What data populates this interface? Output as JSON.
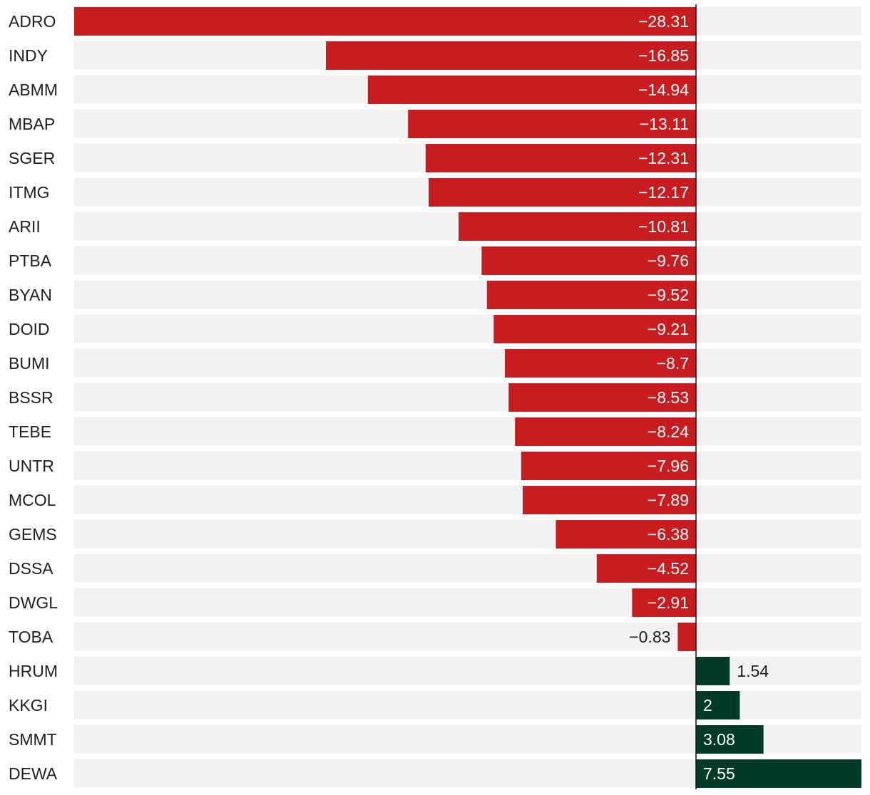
{
  "chart_data": {
    "type": "bar",
    "orientation": "horizontal",
    "categories": [
      "ADRO",
      "INDY",
      "ABMM",
      "MBAP",
      "SGER",
      "ITMG",
      "ARII",
      "PTBA",
      "BYAN",
      "DOID",
      "BUMI",
      "BSSR",
      "TEBE",
      "UNTR",
      "MCOL",
      "GEMS",
      "DSSA",
      "DWGL",
      "TOBA",
      "HRUM",
      "KKGI",
      "SMMT",
      "DEWA"
    ],
    "values": [
      -28.31,
      -16.85,
      -14.94,
      -13.11,
      -12.31,
      -12.17,
      -10.81,
      -9.76,
      -9.52,
      -9.21,
      -8.7,
      -8.53,
      -8.24,
      -7.96,
      -7.89,
      -6.38,
      -4.52,
      -2.91,
      -0.83,
      1.54,
      2,
      3.08,
      7.55
    ],
    "value_labels": [
      "−28.31",
      "−16.85",
      "−14.94",
      "−13.11",
      "−12.31",
      "−12.17",
      "−10.81",
      "−9.76",
      "−9.52",
      "−9.21",
      "−8.7",
      "−8.53",
      "−8.24",
      "−7.96",
      "−7.89",
      "−6.38",
      "−4.52",
      "−2.91",
      "−0.83",
      "1.54",
      "2",
      "3.08",
      "7.55"
    ],
    "xlim": [
      -28.31,
      7.55
    ],
    "title": "",
    "xlabel": "",
    "ylabel": "",
    "grid": false,
    "legend": "none",
    "colors": {
      "negative": "#c81c1e",
      "positive": "#003b25",
      "row_background": "#f2f2f2",
      "zero_line": "#111111",
      "label_on_bar": "#ffffff",
      "label_off_bar": "#1f1f1f"
    }
  }
}
